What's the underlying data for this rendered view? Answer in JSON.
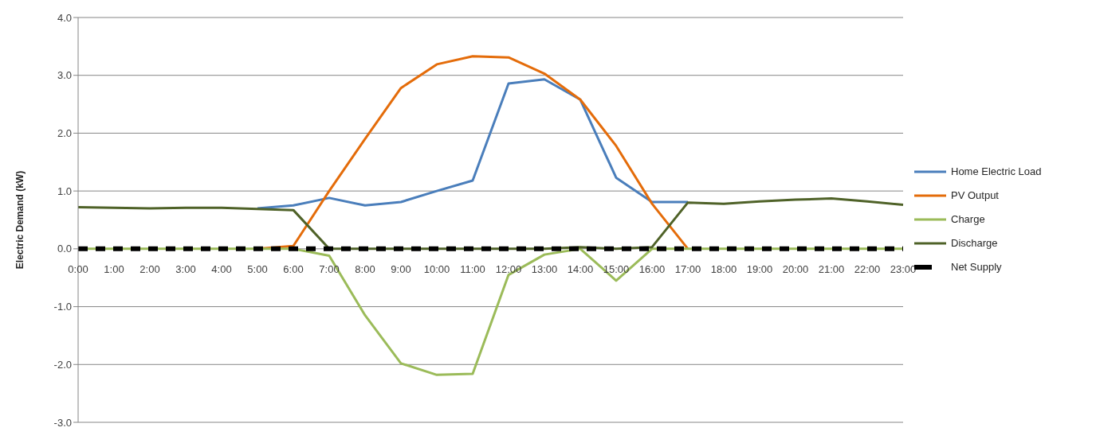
{
  "chart_data": {
    "type": "line",
    "ylabel": "Electric Demand (kW)",
    "categories": [
      "0:00",
      "1:00",
      "2:00",
      "3:00",
      "4:00",
      "5:00",
      "6:00",
      "7:00",
      "8:00",
      "9:00",
      "10:00",
      "11:00",
      "12:00",
      "13:00",
      "14:00",
      "15:00",
      "16:00",
      "17:00",
      "18:00",
      "19:00",
      "20:00",
      "21:00",
      "22:00",
      "23:00"
    ],
    "series": [
      {
        "name": "Home Electric Load",
        "color": "#4a7ebb",
        "values": [
          null,
          null,
          null,
          null,
          null,
          0.7,
          0.75,
          0.88,
          0.75,
          0.81,
          1.0,
          1.18,
          2.86,
          2.93,
          2.58,
          1.23,
          0.81,
          0.81,
          null,
          null,
          null,
          null,
          null,
          null
        ]
      },
      {
        "name": "PV Output",
        "color": "#e46c0a",
        "values": [
          null,
          null,
          null,
          null,
          null,
          0,
          0.05,
          1.0,
          1.9,
          2.78,
          3.19,
          3.33,
          3.31,
          3.03,
          2.58,
          1.78,
          0.78,
          0,
          null,
          null,
          null,
          null,
          null,
          null
        ]
      },
      {
        "name": "Charge",
        "color": "#9bbb59",
        "values": [
          0,
          0,
          0,
          0,
          0,
          0,
          0,
          -0.12,
          -1.15,
          -1.98,
          -2.18,
          -2.16,
          -0.45,
          -0.1,
          0,
          -0.55,
          0,
          0,
          0,
          0,
          0,
          0,
          0,
          0
        ]
      },
      {
        "name": "Discharge",
        "color": "#4f6228",
        "values": [
          0.72,
          0.71,
          0.7,
          0.71,
          0.71,
          0.69,
          0.67,
          0,
          0,
          0,
          0,
          0,
          0,
          0,
          0.03,
          0,
          0.03,
          0.8,
          0.78,
          0.82,
          0.85,
          0.87,
          0.82,
          0.76
        ]
      },
      {
        "name": "Net Supply",
        "color": "#000000",
        "line_style": "dashed",
        "values": [
          0,
          0,
          0,
          0,
          0,
          0,
          0,
          0,
          0,
          0,
          0,
          0,
          0,
          0,
          0,
          0,
          0,
          0,
          0,
          0,
          0,
          0,
          0,
          0
        ]
      }
    ],
    "ylim": [
      -3,
      4
    ],
    "yticks": [
      {
        "value": -3,
        "label": "-3.0"
      },
      {
        "value": -2,
        "label": "-2.0"
      },
      {
        "value": -1,
        "label": "-1.0"
      },
      {
        "value": 0,
        "label": "0.0"
      },
      {
        "value": 1,
        "label": "1.0"
      },
      {
        "value": 2,
        "label": "2.0"
      },
      {
        "value": 3,
        "label": "3.0"
      },
      {
        "value": 4,
        "label": "4.0"
      }
    ],
    "grid": "y",
    "legend": "right",
    "marker": "none",
    "line_style": "solid"
  }
}
